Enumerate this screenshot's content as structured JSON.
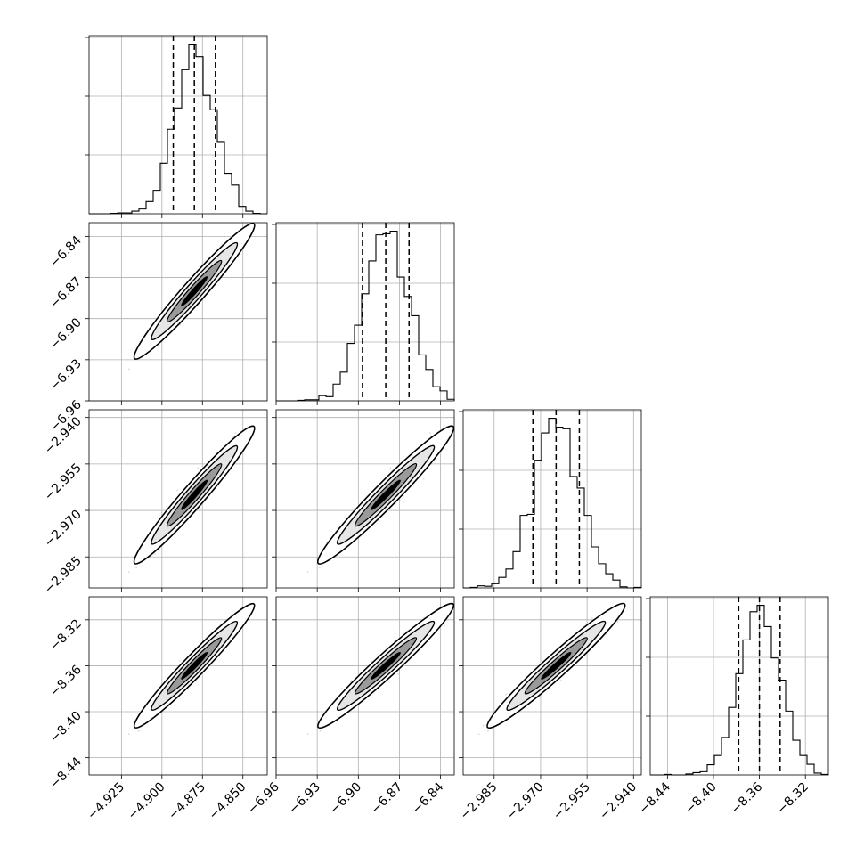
{
  "chart_data": {
    "type": "corner",
    "colors": {
      "line": "#000000",
      "grid": "#b0b0b0",
      "points": "#999999",
      "fill_levels": [
        "#ffffff",
        "#e6e6e6",
        "#9a9a9a",
        "#000000"
      ]
    },
    "parameters": [
      {
        "index": 0,
        "range": [
          -4.945,
          -4.835
        ],
        "mean": -4.88,
        "std": 0.0125,
        "quantiles": [
          -4.893,
          -4.88,
          -4.867
        ]
      },
      {
        "index": 1,
        "range": [
          -6.96,
          -6.83
        ],
        "mean": -6.88,
        "std": 0.0167,
        "quantiles": [
          -6.897,
          -6.88,
          -6.863
        ]
      },
      {
        "index": 2,
        "range": [
          -2.995,
          -2.9375
        ],
        "mean": -2.965,
        "std": 0.0075,
        "quantiles": [
          -2.9725,
          -2.965,
          -2.9575
        ]
      },
      {
        "index": 3,
        "range": [
          -8.455,
          -8.3
        ],
        "mean": -8.36,
        "std": 0.0182,
        "quantiles": [
          -8.378,
          -8.36,
          -8.342
        ]
      }
    ],
    "x_tick_labels": [
      [
        "−4.925",
        "−4.900",
        "−4.875",
        "−4.850"
      ],
      [
        "−6.96",
        "−6.93",
        "−6.90",
        "−6.87",
        "−6.84"
      ],
      [
        "−2.985",
        "−2.970",
        "−2.955",
        "−2.940"
      ],
      [
        "−8.44",
        "−8.40",
        "−8.36",
        "−8.32"
      ]
    ],
    "x_tick_values": [
      [
        -4.925,
        -4.9,
        -4.875,
        -4.85
      ],
      [
        -6.96,
        -6.93,
        -6.9,
        -6.87,
        -6.84
      ],
      [
        -2.985,
        -2.97,
        -2.955,
        -2.94
      ],
      [
        -8.44,
        -8.4,
        -8.36,
        -8.32
      ]
    ],
    "y_tick_labels": {
      "1": [
        "−6.84",
        "−6.87",
        "−6.90",
        "−6.93",
        "−6.96"
      ],
      "2": [
        "−2.940",
        "−2.955",
        "−2.970",
        "−2.985"
      ],
      "3": [
        "−8.32",
        "−8.36",
        "−8.40",
        "−8.44"
      ]
    },
    "y_tick_values": {
      "1": [
        -6.84,
        -6.87,
        -6.9,
        -6.93,
        -6.96
      ],
      "2": [
        -2.94,
        -2.955,
        -2.97,
        -2.985
      ],
      "3": [
        -8.32,
        -8.36,
        -8.4,
        -8.44
      ]
    },
    "correlation": 0.97,
    "histogram_bins": 25,
    "grid": true,
    "xlabel": "",
    "ylabel": "",
    "title": ""
  }
}
